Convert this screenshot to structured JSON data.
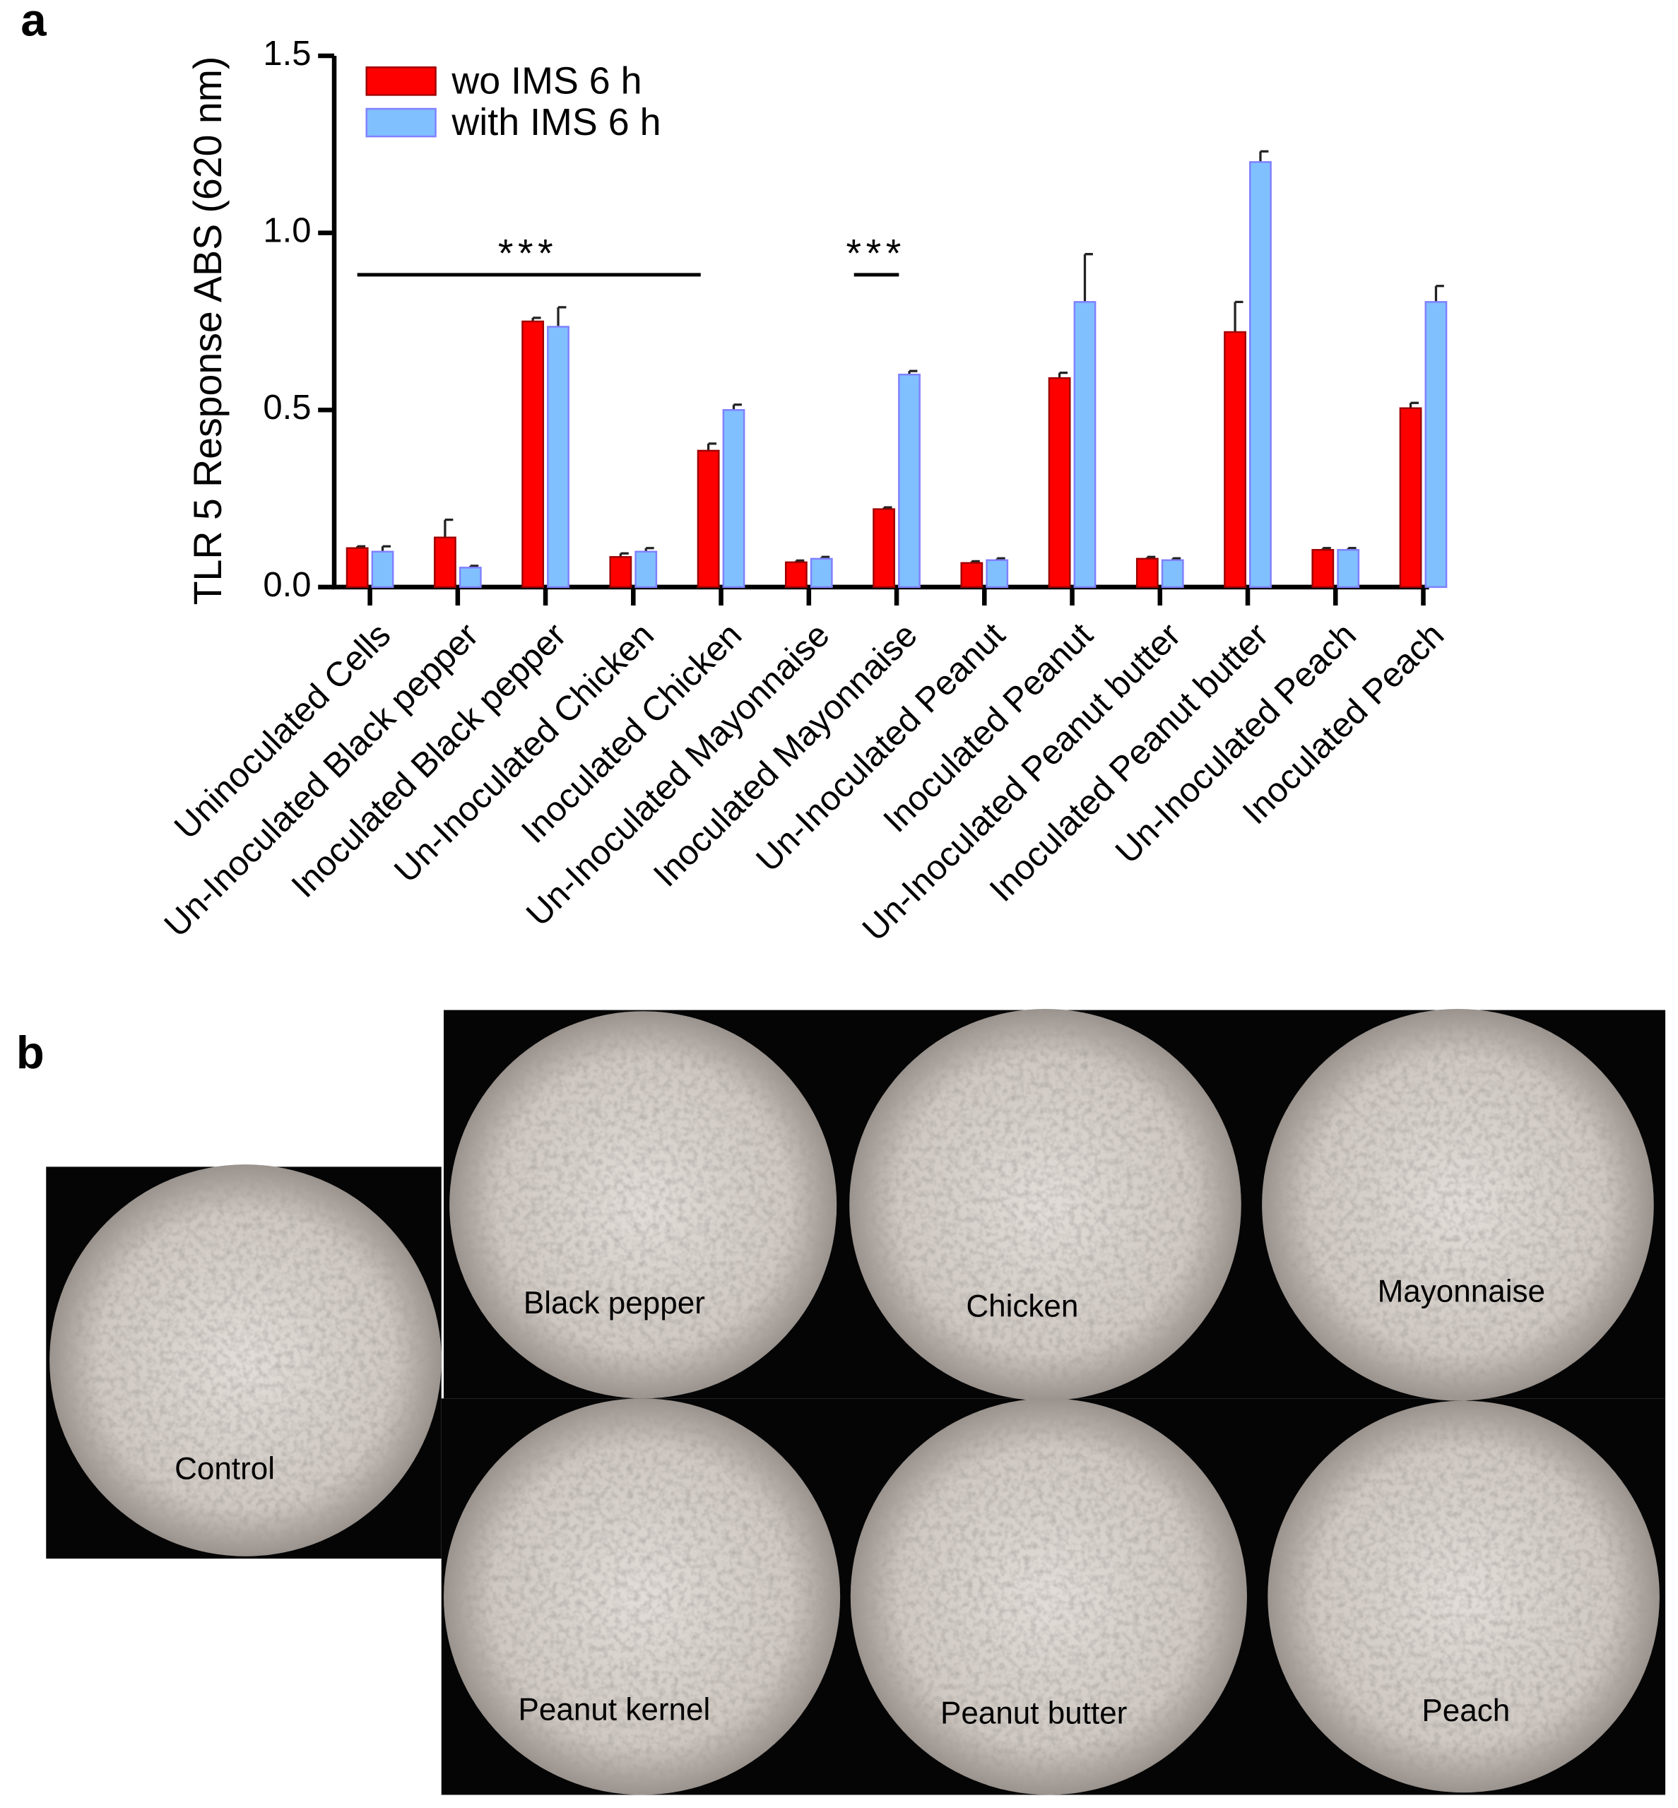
{
  "chart_data": {
    "type": "bar",
    "panel_label": "a",
    "y_label": "TLR 5 Response ABS (620 nm)",
    "categories": [
      "Uninoculated Cells",
      "Un-Inoculated Black pepper",
      "Inoculated Black pepper",
      "Un-Inoculated Chicken",
      "Inoculated Chicken",
      "Un-Inoculated Mayonnaise",
      "Inoculated Mayonnaise",
      "Un-Inoculated Peanut",
      "Inoculated Peanut",
      "Un-Inoculated Peanut butter",
      "Inoculated Peanut butter",
      "Un-Inoculated Peach",
      "Inoculated Peach"
    ],
    "series": [
      {
        "name": "wo IMS 6 h",
        "color": "#ff0000",
        "edge": "#a00000",
        "values": [
          0.11,
          0.14,
          0.75,
          0.085,
          0.385,
          0.07,
          0.22,
          0.068,
          0.59,
          0.08,
          0.72,
          0.105,
          0.505
        ],
        "errors": [
          0.005,
          0.05,
          0.01,
          0.01,
          0.02,
          0.005,
          0.005,
          0.005,
          0.015,
          0.005,
          0.085,
          0.005,
          0.015
        ]
      },
      {
        "name": "with IMS 6 h",
        "color": "#80c0ff",
        "edge": "#8080ff",
        "values": [
          0.1,
          0.055,
          0.735,
          0.1,
          0.5,
          0.08,
          0.6,
          0.076,
          0.805,
          0.076,
          1.2,
          0.105,
          0.805
        ],
        "errors": [
          0.015,
          0.005,
          0.055,
          0.01,
          0.015,
          0.005,
          0.01,
          0.005,
          0.135,
          0.005,
          0.03,
          0.005,
          0.045
        ]
      }
    ],
    "ylim": [
      0,
      1.5
    ],
    "yticks": [
      {
        "value": 0,
        "label": "0.0"
      },
      0.5,
      {
        "value": 1,
        "label": "1.0"
      },
      1.5
    ],
    "annotations": [
      "***",
      "***"
    ]
  },
  "micrographs": {
    "panel_label": "b",
    "labels": [
      "Control",
      "Black pepper",
      "Chicken",
      "Mayonnaise",
      "Peanut kernel",
      "Peanut butter",
      "Peach"
    ]
  }
}
